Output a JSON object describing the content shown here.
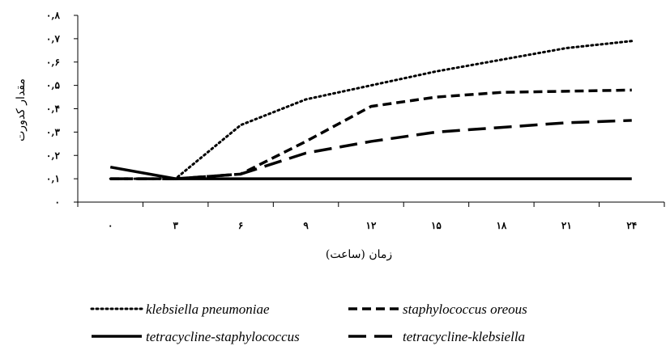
{
  "chart_data": {
    "type": "line",
    "title": "",
    "xlabel": "زمان (ساعت)",
    "ylabel": "مقدار کدورت",
    "categories": [
      "۰",
      "۳",
      "۶",
      "۹",
      "۱۲",
      "۱۵",
      "۱۸",
      "۲۱",
      "۲۴"
    ],
    "x": [
      0,
      3,
      6,
      9,
      12,
      15,
      18,
      21,
      24
    ],
    "y_ticks": [
      0,
      0.1,
      0.2,
      0.3,
      0.4,
      0.5,
      0.6,
      0.7,
      0.8
    ],
    "y_tick_labels": [
      "۰",
      "۰,۱",
      "۰,۲",
      "۰,۳",
      "۰,۴",
      "۰,۵",
      "۰,۶",
      "۰,۷",
      "۰,۸"
    ],
    "ylim": [
      0,
      0.8
    ],
    "grid": false,
    "legend_position": "bottom",
    "series": [
      {
        "name": "klebsiella pneumoniae",
        "style": "dotted",
        "color": "#000000",
        "values": [
          0.1,
          0.1,
          0.33,
          0.44,
          0.5,
          0.56,
          0.61,
          0.66,
          0.69
        ]
      },
      {
        "name": "staphylococcus oreous",
        "style": "dashed",
        "color": "#000000",
        "values": [
          0.1,
          0.1,
          0.12,
          0.26,
          0.41,
          0.45,
          0.47,
          0.475,
          0.48
        ]
      },
      {
        "name": "tetracycline-staphylococcus",
        "style": "solid",
        "color": "#000000",
        "values": [
          0.15,
          0.1,
          0.1,
          0.1,
          0.1,
          0.1,
          0.1,
          0.1,
          0.1
        ]
      },
      {
        "name": "tetracycline-klebsiella",
        "style": "longdash",
        "color": "#000000",
        "values": [
          0.1,
          0.1,
          0.12,
          0.21,
          0.26,
          0.3,
          0.32,
          0.34,
          0.35
        ]
      }
    ]
  }
}
